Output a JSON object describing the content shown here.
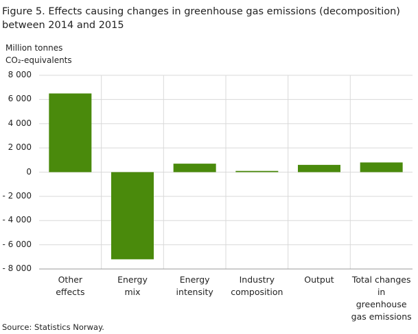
{
  "chart_data": {
    "type": "bar",
    "title": "Figure 5. Effects causing changes in greenhouse gas emissions (decomposition)\nbetween 2014 and 2015",
    "y_label": "Million tonnes\nCO₂-equivalents",
    "categories": [
      "Other\neffects",
      "Energy\nmix",
      "Energy\nintensity",
      "Industry\ncomposition",
      "Output",
      "Total changes\nin\ngreenhouse\ngas emissions"
    ],
    "values": [
      6500,
      -7200,
      700,
      100,
      600,
      800
    ],
    "color": "#4a8a0c",
    "ylim": [
      -8000,
      8000
    ],
    "yticks": [
      {
        "value": -8000,
        "label": "- 8 000"
      },
      {
        "value": -6000,
        "label": "- 6 000"
      },
      {
        "value": -4000,
        "label": "- 4 000"
      },
      {
        "value": -2000,
        "label": "- 2 000"
      },
      0,
      {
        "value": 2000,
        "label": "2 000"
      },
      {
        "value": 4000,
        "label": "4 000"
      },
      {
        "value": 6000,
        "label": "6 000"
      },
      {
        "value": 8000,
        "label": "8 000"
      }
    ],
    "grid": true,
    "source": "Source: Statistics Norway."
  }
}
